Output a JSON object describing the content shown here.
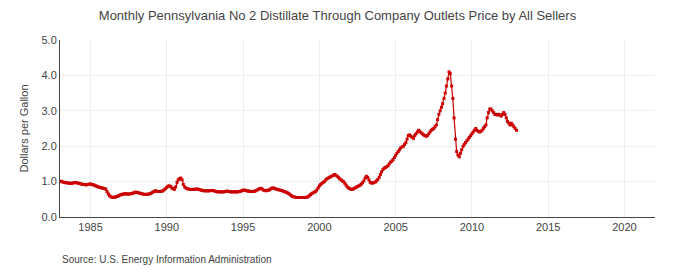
{
  "chart_data": {
    "type": "line",
    "title": "Monthly Pennsylvania No 2 Distillate Through Company Outlets Price by All Sellers",
    "y_label": "Dollars per Gallon",
    "annotations": [
      "Source: U.S. Energy Information Administration"
    ],
    "color": "#cc0000",
    "marker": "square",
    "line_style": "solid",
    "grid": true,
    "xlim": [
      1983,
      2022
    ],
    "ylim": [
      0.0,
      5.0
    ],
    "xticks": [
      1985,
      1990,
      1995,
      2000,
      2005,
      2010,
      2015,
      2020
    ],
    "yticks": [
      {
        "value": 0.0,
        "label": "0.0"
      },
      {
        "value": 1.0,
        "label": "1.0"
      },
      {
        "value": 2.0,
        "label": "2.0"
      },
      {
        "value": 3.0,
        "label": "3.0"
      },
      {
        "value": 4.0,
        "label": "4.0"
      },
      {
        "value": 5.0,
        "label": "5.0"
      }
    ],
    "x": [
      1983.0,
      1983.08,
      1983.17,
      1983.25,
      1983.33,
      1983.42,
      1983.5,
      1983.58,
      1983.67,
      1983.75,
      1983.83,
      1983.92,
      1984.0,
      1984.08,
      1984.17,
      1984.25,
      1984.33,
      1984.42,
      1984.5,
      1984.58,
      1984.67,
      1984.75,
      1984.83,
      1984.92,
      1985.0,
      1985.08,
      1985.17,
      1985.25,
      1985.33,
      1985.42,
      1985.5,
      1985.58,
      1985.67,
      1985.75,
      1985.83,
      1985.92,
      1986.0,
      1986.08,
      1986.17,
      1986.25,
      1986.33,
      1986.42,
      1986.5,
      1986.58,
      1986.67,
      1986.75,
      1986.83,
      1986.92,
      1987.0,
      1987.08,
      1987.17,
      1987.25,
      1987.33,
      1987.42,
      1987.5,
      1987.58,
      1987.67,
      1987.75,
      1987.83,
      1987.92,
      1988.0,
      1988.08,
      1988.17,
      1988.25,
      1988.33,
      1988.42,
      1988.5,
      1988.58,
      1988.67,
      1988.75,
      1988.83,
      1988.92,
      1989.0,
      1989.08,
      1989.17,
      1989.25,
      1989.33,
      1989.42,
      1989.5,
      1989.58,
      1989.67,
      1989.75,
      1989.83,
      1989.92,
      1990.0,
      1990.08,
      1990.17,
      1990.25,
      1990.33,
      1990.42,
      1990.5,
      1990.58,
      1990.67,
      1990.75,
      1990.83,
      1990.92,
      1991.0,
      1991.08,
      1991.17,
      1991.25,
      1991.33,
      1991.42,
      1991.5,
      1991.58,
      1991.67,
      1991.75,
      1991.83,
      1991.92,
      1992.0,
      1992.08,
      1992.17,
      1992.25,
      1992.33,
      1992.42,
      1992.5,
      1992.58,
      1992.67,
      1992.75,
      1992.83,
      1992.92,
      1993.0,
      1993.08,
      1993.17,
      1993.25,
      1993.33,
      1993.42,
      1993.5,
      1993.58,
      1993.67,
      1993.75,
      1993.83,
      1993.92,
      1994.0,
      1994.08,
      1994.17,
      1994.25,
      1994.33,
      1994.42,
      1994.5,
      1994.58,
      1994.67,
      1994.75,
      1994.83,
      1994.92,
      1995.0,
      1995.08,
      1995.17,
      1995.25,
      1995.33,
      1995.42,
      1995.5,
      1995.58,
      1995.67,
      1995.75,
      1995.83,
      1995.92,
      1996.0,
      1996.08,
      1996.17,
      1996.25,
      1996.33,
      1996.42,
      1996.5,
      1996.58,
      1996.67,
      1996.75,
      1996.83,
      1996.92,
      1997.0,
      1997.08,
      1997.17,
      1997.25,
      1997.33,
      1997.42,
      1997.5,
      1997.58,
      1997.67,
      1997.75,
      1997.83,
      1997.92,
      1998.0,
      1998.08,
      1998.17,
      1998.25,
      1998.33,
      1998.42,
      1998.5,
      1998.58,
      1998.67,
      1998.75,
      1998.83,
      1998.92,
      1999.0,
      1999.08,
      1999.17,
      1999.25,
      1999.33,
      1999.42,
      1999.5,
      1999.58,
      1999.67,
      1999.75,
      1999.83,
      1999.92,
      2000.0,
      2000.08,
      2000.17,
      2000.25,
      2000.33,
      2000.42,
      2000.5,
      2000.58,
      2000.67,
      2000.75,
      2000.83,
      2000.92,
      2001.0,
      2001.08,
      2001.17,
      2001.25,
      2001.33,
      2001.42,
      2001.5,
      2001.58,
      2001.67,
      2001.75,
      2001.83,
      2001.92,
      2002.0,
      2002.08,
      2002.17,
      2002.25,
      2002.33,
      2002.42,
      2002.5,
      2002.58,
      2002.67,
      2002.75,
      2002.83,
      2002.92,
      2003.0,
      2003.08,
      2003.17,
      2003.25,
      2003.33,
      2003.42,
      2003.5,
      2003.58,
      2003.67,
      2003.75,
      2003.83,
      2003.92,
      2004.0,
      2004.08,
      2004.17,
      2004.25,
      2004.33,
      2004.42,
      2004.5,
      2004.58,
      2004.67,
      2004.75,
      2004.83,
      2004.92,
      2005.0,
      2005.08,
      2005.17,
      2005.25,
      2005.33,
      2005.42,
      2005.5,
      2005.58,
      2005.67,
      2005.75,
      2005.83,
      2005.92,
      2006.0,
      2006.08,
      2006.17,
      2006.25,
      2006.33,
      2006.42,
      2006.5,
      2006.58,
      2006.67,
      2006.75,
      2006.83,
      2006.92,
      2007.0,
      2007.08,
      2007.17,
      2007.25,
      2007.33,
      2007.42,
      2007.5,
      2007.58,
      2007.67,
      2007.75,
      2007.83,
      2007.92,
      2008.0,
      2008.08,
      2008.17,
      2008.25,
      2008.33,
      2008.42,
      2008.5,
      2008.58,
      2008.67,
      2008.75,
      2008.83,
      2008.92,
      2009.0,
      2009.08,
      2009.17,
      2009.25,
      2009.33,
      2009.42,
      2009.5,
      2009.58,
      2009.67,
      2009.75,
      2009.83,
      2009.92,
      2010.0,
      2010.08,
      2010.17,
      2010.25,
      2010.33,
      2010.42,
      2010.5,
      2010.58,
      2010.67,
      2010.75,
      2010.83,
      2010.92,
      2011.0,
      2011.08,
      2011.17,
      2011.25,
      2011.33,
      2011.42,
      2011.5,
      2011.58,
      2011.67,
      2011.75,
      2011.83,
      2011.92,
      2012.0,
      2012.08,
      2012.17,
      2012.25,
      2012.33,
      2012.42,
      2012.5,
      2012.58,
      2012.67,
      2012.75,
      2012.83,
      2012.92
    ],
    "values": [
      1.0,
      1.01,
      0.99,
      0.98,
      0.97,
      0.97,
      0.96,
      0.96,
      0.95,
      0.95,
      0.96,
      0.97,
      0.97,
      0.97,
      0.96,
      0.95,
      0.94,
      0.93,
      0.92,
      0.92,
      0.91,
      0.91,
      0.92,
      0.93,
      0.93,
      0.92,
      0.91,
      0.9,
      0.88,
      0.87,
      0.85,
      0.84,
      0.83,
      0.82,
      0.81,
      0.8,
      0.79,
      0.72,
      0.65,
      0.6,
      0.57,
      0.56,
      0.55,
      0.56,
      0.57,
      0.58,
      0.6,
      0.62,
      0.63,
      0.64,
      0.65,
      0.66,
      0.65,
      0.65,
      0.65,
      0.65,
      0.66,
      0.67,
      0.68,
      0.7,
      0.7,
      0.69,
      0.68,
      0.67,
      0.66,
      0.65,
      0.64,
      0.64,
      0.64,
      0.64,
      0.65,
      0.66,
      0.68,
      0.7,
      0.72,
      0.74,
      0.73,
      0.72,
      0.72,
      0.72,
      0.73,
      0.74,
      0.77,
      0.8,
      0.84,
      0.87,
      0.88,
      0.86,
      0.82,
      0.8,
      0.78,
      0.85,
      0.98,
      1.05,
      1.08,
      1.1,
      1.05,
      0.92,
      0.85,
      0.82,
      0.8,
      0.79,
      0.78,
      0.78,
      0.78,
      0.78,
      0.78,
      0.79,
      0.79,
      0.78,
      0.77,
      0.76,
      0.75,
      0.74,
      0.74,
      0.74,
      0.74,
      0.74,
      0.74,
      0.75,
      0.75,
      0.74,
      0.73,
      0.72,
      0.71,
      0.71,
      0.71,
      0.71,
      0.71,
      0.71,
      0.72,
      0.73,
      0.73,
      0.72,
      0.71,
      0.71,
      0.71,
      0.71,
      0.71,
      0.71,
      0.71,
      0.72,
      0.73,
      0.74,
      0.76,
      0.76,
      0.75,
      0.74,
      0.73,
      0.73,
      0.72,
      0.72,
      0.72,
      0.73,
      0.74,
      0.76,
      0.78,
      0.8,
      0.81,
      0.79,
      0.76,
      0.75,
      0.74,
      0.75,
      0.76,
      0.77,
      0.8,
      0.82,
      0.82,
      0.8,
      0.79,
      0.78,
      0.77,
      0.76,
      0.75,
      0.74,
      0.72,
      0.71,
      0.7,
      0.68,
      0.66,
      0.63,
      0.6,
      0.58,
      0.57,
      0.56,
      0.55,
      0.55,
      0.55,
      0.55,
      0.55,
      0.55,
      0.55,
      0.55,
      0.56,
      0.57,
      0.6,
      0.63,
      0.66,
      0.68,
      0.7,
      0.72,
      0.76,
      0.82,
      0.88,
      0.92,
      0.95,
      0.98,
      1.0,
      1.05,
      1.08,
      1.1,
      1.12,
      1.14,
      1.16,
      1.18,
      1.2,
      1.18,
      1.15,
      1.12,
      1.08,
      1.05,
      1.02,
      1.0,
      0.95,
      0.9,
      0.85,
      0.82,
      0.8,
      0.78,
      0.78,
      0.8,
      0.82,
      0.84,
      0.86,
      0.88,
      0.9,
      0.93,
      0.97,
      1.02,
      1.1,
      1.15,
      1.12,
      1.05,
      0.98,
      0.96,
      0.96,
      0.97,
      0.99,
      1.02,
      1.06,
      1.12,
      1.2,
      1.28,
      1.34,
      1.38,
      1.4,
      1.42,
      1.45,
      1.5,
      1.55,
      1.58,
      1.62,
      1.68,
      1.74,
      1.8,
      1.85,
      1.9,
      1.95,
      1.98,
      2.0,
      2.05,
      2.1,
      2.2,
      2.3,
      2.32,
      2.28,
      2.25,
      2.22,
      2.3,
      2.35,
      2.4,
      2.45,
      2.42,
      2.38,
      2.35,
      2.32,
      2.3,
      2.28,
      2.3,
      2.35,
      2.4,
      2.45,
      2.48,
      2.5,
      2.55,
      2.6,
      2.75,
      2.9,
      3.0,
      3.1,
      3.2,
      3.35,
      3.5,
      3.7,
      3.9,
      4.1,
      4.05,
      3.7,
      3.35,
      2.8,
      2.2,
      1.85,
      1.75,
      1.7,
      1.8,
      1.9,
      2.0,
      2.05,
      2.1,
      2.15,
      2.2,
      2.25,
      2.3,
      2.35,
      2.4,
      2.45,
      2.5,
      2.45,
      2.42,
      2.4,
      2.42,
      2.45,
      2.5,
      2.55,
      2.6,
      2.8,
      2.95,
      3.05,
      3.05,
      3.0,
      2.95,
      2.9,
      2.9,
      2.88,
      2.9,
      2.88,
      2.85,
      2.9,
      2.95,
      2.9,
      2.8,
      2.7,
      2.65,
      2.6,
      2.65,
      2.6,
      2.55,
      2.5,
      2.45
    ]
  }
}
